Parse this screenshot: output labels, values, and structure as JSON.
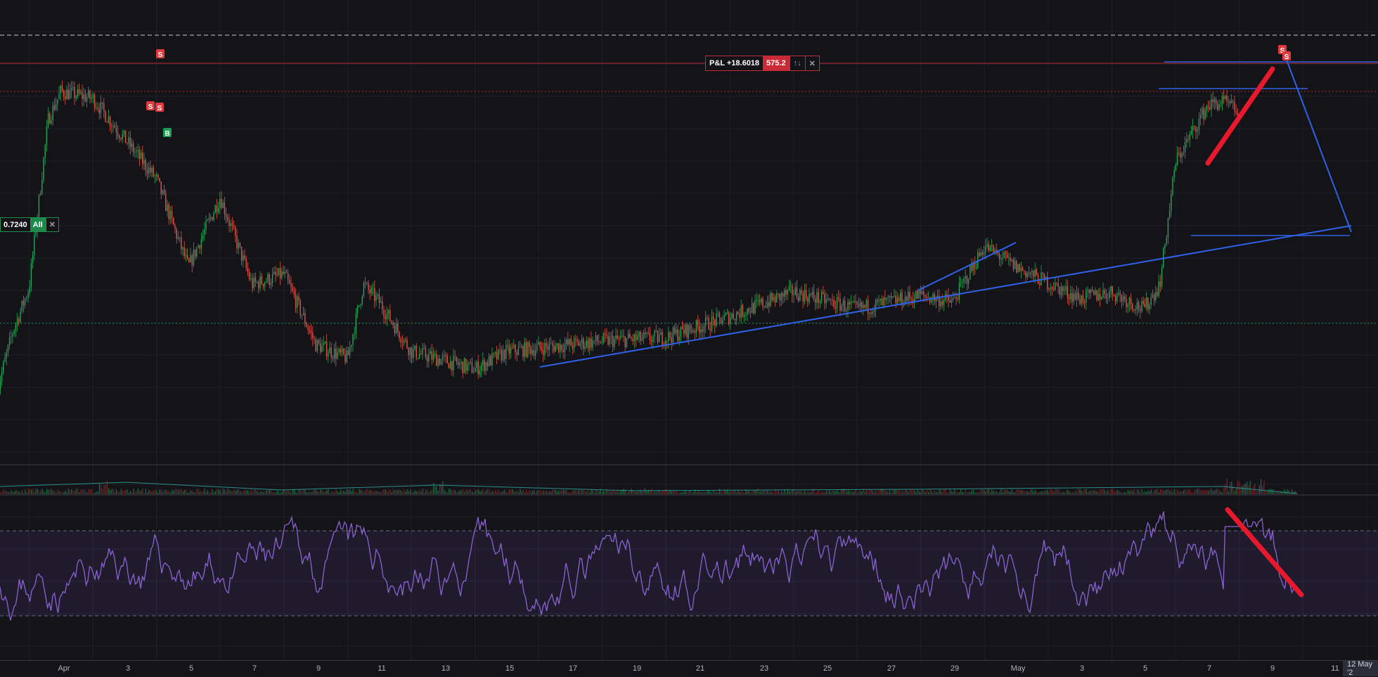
{
  "colors": {
    "background": "#131318",
    "up": "#26a65b",
    "down": "#e5534b",
    "trendline": "#2f62e8",
    "marker_red": "#e8192c",
    "rsi": "#8a63d2",
    "rsi_band": "rgba(120,90,200,0.12)",
    "sell_marker": "#e03a3e",
    "buy_marker": "#1e9e55"
  },
  "pnl_box": {
    "label": "P&L +18.6018",
    "qty": "575.2",
    "reverse_icon": "↑↓",
    "close_icon": "✕"
  },
  "entry_box": {
    "price": "0.7240",
    "qty": "All",
    "close_icon": "✕"
  },
  "x_axis": {
    "labels": [
      "Apr",
      "3",
      "5",
      "7",
      "9",
      "11",
      "13",
      "15",
      "17",
      "19",
      "21",
      "23",
      "25",
      "27",
      "29",
      "May",
      "3",
      "5",
      "7",
      "9",
      "11"
    ],
    "last_label": "12 May '2"
  },
  "trade_markers": [
    {
      "label": "S",
      "type": "sell"
    },
    {
      "label": "S",
      "type": "sell"
    },
    {
      "label": "S",
      "type": "sell"
    },
    {
      "label": "B",
      "type": "buy"
    },
    {
      "label": "S",
      "type": "sell"
    },
    {
      "label": "S",
      "type": "sell"
    }
  ],
  "chart_data": [
    {
      "type": "candlestick",
      "title": "",
      "x_range": [
        "Apr 1",
        "May 12"
      ],
      "grid": true,
      "anchors": [
        {
          "x": "Apr 1",
          "y": 0.705
        },
        {
          "x": "Apr 1.5",
          "y": 0.722
        },
        {
          "x": "Apr 2",
          "y": 0.734
        },
        {
          "x": "Apr 2.6",
          "y": 0.782
        },
        {
          "x": "Apr 3",
          "y": 0.79
        },
        {
          "x": "Apr 4",
          "y": 0.788
        },
        {
          "x": "Apr 6",
          "y": 0.765
        },
        {
          "x": "Apr 7",
          "y": 0.74
        },
        {
          "x": "Apr 8",
          "y": 0.76
        },
        {
          "x": "Apr 9",
          "y": 0.735
        },
        {
          "x": "Apr 10",
          "y": 0.738
        },
        {
          "x": "Apr 11",
          "y": 0.718
        },
        {
          "x": "Apr 12",
          "y": 0.714
        },
        {
          "x": "Apr 12.5",
          "y": 0.735
        },
        {
          "x": "Apr 13",
          "y": 0.73
        },
        {
          "x": "Apr 14",
          "y": 0.716
        },
        {
          "x": "Apr 16",
          "y": 0.711
        },
        {
          "x": "Apr 17",
          "y": 0.716
        },
        {
          "x": "Apr 20",
          "y": 0.719
        },
        {
          "x": "Apr 22",
          "y": 0.72
        },
        {
          "x": "Apr 24",
          "y": 0.726
        },
        {
          "x": "Apr 26",
          "y": 0.733
        },
        {
          "x": "Apr 28",
          "y": 0.728
        },
        {
          "x": "Apr 30",
          "y": 0.732
        },
        {
          "x": "May 1",
          "y": 0.73
        },
        {
          "x": "May 2",
          "y": 0.746
        },
        {
          "x": "May 3",
          "y": 0.74
        },
        {
          "x": "May 5",
          "y": 0.731
        },
        {
          "x": "May 6",
          "y": 0.733
        },
        {
          "x": "May 7",
          "y": 0.728
        },
        {
          "x": "May 7.5",
          "y": 0.735
        },
        {
          "x": "May 8",
          "y": 0.77
        },
        {
          "x": "May 9",
          "y": 0.786
        },
        {
          "x": "May 9.5",
          "y": 0.787
        },
        {
          "x": "May 10",
          "y": 0.784
        }
      ],
      "horizontal_lines": [
        {
          "name": "sell level",
          "y": 0.798,
          "style": "solid",
          "color": "#b7282e"
        },
        {
          "name": "upper dashed",
          "y": 0.806,
          "style": "dashed",
          "color": "#c8cbd3"
        },
        {
          "name": "lower dotted",
          "y": 0.79,
          "style": "dotted",
          "color": "#b7282e"
        },
        {
          "name": "entry",
          "y": 0.724,
          "style": "dotted",
          "color": "#1f8f4e"
        }
      ],
      "drawings": [
        "ascending trendline",
        "short uptrend line",
        "triangle pattern",
        "red up arrow at top"
      ]
    },
    {
      "type": "bar",
      "title": "",
      "series": [
        {
          "values": "volume histogram"
        }
      ]
    },
    {
      "type": "line",
      "title": "",
      "y_range": [
        0,
        100
      ],
      "band": [
        30,
        70
      ],
      "drawings": [
        "red down arrow (divergence)"
      ]
    }
  ]
}
